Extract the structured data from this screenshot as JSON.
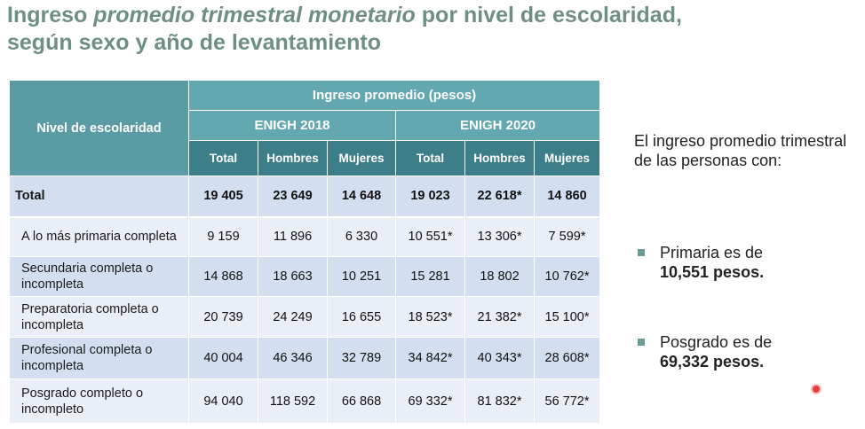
{
  "title": {
    "part1": "Ingreso ",
    "part2": "promedio trimestral monetario",
    "part3": " por nivel de escolaridad,",
    "line2": "según sexo y año de levantamiento"
  },
  "table": {
    "row_header": "Nivel de escolaridad",
    "group_header": "Ingreso promedio (pesos)",
    "surveys": [
      "ENIGH 2018",
      "ENIGH 2020"
    ],
    "columns": [
      "Total",
      "Hombres",
      "Mujeres",
      "Total",
      "Hombres",
      "Mujeres"
    ],
    "rows": [
      {
        "label": "Total",
        "values": [
          "19 405",
          "23 649",
          "14 648",
          "19 023",
          "22 618*",
          "14 860"
        ]
      },
      {
        "label": "A lo más primaria completa",
        "values": [
          "9 159",
          "11 896",
          "6 330",
          "10 551*",
          "13 306*",
          "7 599*"
        ]
      },
      {
        "label": "Secundaria completa o incompleta",
        "values": [
          "14 868",
          "18 663",
          "10 251",
          "15 281",
          "18 802",
          "10 762*"
        ]
      },
      {
        "label": "Preparatoria completa o incompleta",
        "values": [
          "20 739",
          "24 249",
          "16 655",
          "18 523*",
          "21 382*",
          "15 100*"
        ]
      },
      {
        "label": "Profesional completa o incompleta",
        "values": [
          "40 004",
          "46 346",
          "32 789",
          "34 842*",
          "40 343*",
          "28 608*"
        ]
      },
      {
        "label": "Posgrado completo o incompleto",
        "values": [
          "94 040",
          "118 592",
          "66 868",
          "69 332*",
          "81 832*",
          "56 772*"
        ]
      }
    ]
  },
  "sidebar": {
    "intro": "El ingreso promedio trimestral de las personas con:",
    "bullet1_text": "Primaria es de",
    "bullet1_value": "10,551 pesos.",
    "bullet2_text": "Posgrado es de",
    "bullet2_value": "69,332 pesos."
  }
}
